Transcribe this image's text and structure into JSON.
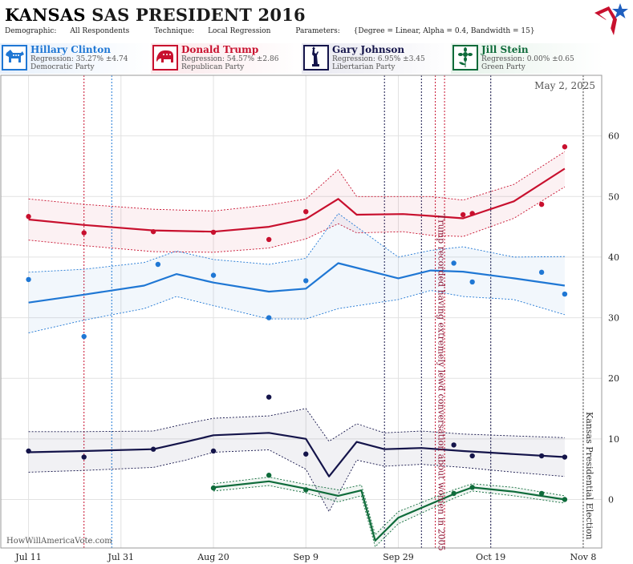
{
  "header": {
    "state": "KANSAS",
    "title_rest": "SAS PRESIDENT 2016",
    "demographic_label": "Demographic:",
    "demographic_value": "All Respondents",
    "technique_label": "Technique:",
    "technique_value": "Local Regression",
    "parameters_label": "Parameters:",
    "parameters_value": "{Degree = Linear, Alpha = 0.4, Bandwidth = 15}"
  },
  "candidates": [
    {
      "name": "Hillary Clinton",
      "regression": "Regression: 35.27% ±4.74",
      "party": "Democratic Party",
      "color": "#1f77d4",
      "icon": "donkey-icon"
    },
    {
      "name": "Donald Trump",
      "regression": "Regression: 54.57% ±2.86",
      "party": "Republican Party",
      "color": "#c8102e",
      "icon": "elephant-icon"
    },
    {
      "name": "Gary Johnson",
      "regression": "Regression: 6.95% ±3.45",
      "party": "Libertarian Party",
      "color": "#14144a",
      "icon": "liberty-icon"
    },
    {
      "name": "Jill Stein",
      "regression": "Regression: 0.00% ±0.65",
      "party": "Green Party",
      "color": "#0e6b3a",
      "icon": "sunflower-icon"
    }
  ],
  "chart_data": {
    "type": "line",
    "date_label": "May 2, 2025",
    "watermark": "HowWillAmericaVote.com",
    "x_range": [
      "2016-07-05",
      "2016-11-12"
    ],
    "ylim": [
      -8,
      70
    ],
    "y_ticks": [
      0,
      10,
      20,
      30,
      40,
      50,
      60
    ],
    "x_ticks": [
      {
        "label": "Jul 11",
        "date": "2016-07-11"
      },
      {
        "label": "Jul 31",
        "date": "2016-07-31"
      },
      {
        "label": "Aug 20",
        "date": "2016-08-20"
      },
      {
        "label": "Sep 9",
        "date": "2016-09-09"
      },
      {
        "label": "Sep 29",
        "date": "2016-09-29"
      },
      {
        "label": "Oct 19",
        "date": "2016-10-19"
      },
      {
        "label": "Nov 8",
        "date": "2016-11-08"
      }
    ],
    "annotations": [
      {
        "text": "Trump recorded having extremely lewd conversation about women in 2005",
        "date": "2016-10-07",
        "color": "#8b1030"
      },
      {
        "text": "Kansas Presidential Election",
        "date": "2016-11-08",
        "color": "#333333"
      }
    ],
    "event_lines": [
      {
        "date": "2016-07-23",
        "color": "#c8102e"
      },
      {
        "date": "2016-07-29",
        "color": "#1f77d4"
      },
      {
        "date": "2016-09-26",
        "color": "#14144a"
      },
      {
        "date": "2016-10-04",
        "color": "#14144a"
      },
      {
        "date": "2016-10-07",
        "color": "#c8102e"
      },
      {
        "date": "2016-10-09",
        "color": "#c8102e"
      },
      {
        "date": "2016-10-19",
        "color": "#14144a"
      }
    ],
    "series": [
      {
        "name": "Donald Trump",
        "color": "#c8102e",
        "x": [
          "2016-07-11",
          "2016-07-23",
          "2016-08-07",
          "2016-08-20",
          "2016-09-01",
          "2016-09-09",
          "2016-09-16",
          "2016-09-20",
          "2016-09-30",
          "2016-10-06",
          "2016-10-13",
          "2016-10-24",
          "2016-11-04"
        ],
        "y": [
          46.2,
          45.3,
          44.4,
          44.2,
          45.0,
          46.3,
          49.6,
          47.0,
          47.1,
          46.8,
          46.4,
          49.2,
          54.6
        ],
        "lower": [
          42.8,
          41.9,
          40.9,
          40.8,
          41.5,
          43.0,
          45.5,
          44.0,
          44.2,
          43.6,
          43.4,
          46.4,
          51.6
        ],
        "upper": [
          49.6,
          48.7,
          47.9,
          47.6,
          48.6,
          49.6,
          54.4,
          50.0,
          50.0,
          50.0,
          49.4,
          52.0,
          57.4
        ],
        "points": {
          "x": [
            "2016-07-11",
            "2016-07-23",
            "2016-08-07",
            "2016-08-20",
            "2016-09-01",
            "2016-09-09",
            "2016-10-13",
            "2016-10-15",
            "2016-10-30",
            "2016-11-04"
          ],
          "y": [
            46.7,
            44.0,
            44.2,
            44.1,
            42.9,
            47.5,
            47.0,
            47.2,
            48.7,
            58.2
          ]
        }
      },
      {
        "name": "Hillary Clinton",
        "color": "#1f77d4",
        "x": [
          "2016-07-11",
          "2016-07-23",
          "2016-08-05",
          "2016-08-12",
          "2016-08-20",
          "2016-09-01",
          "2016-09-09",
          "2016-09-16",
          "2016-09-29",
          "2016-10-06",
          "2016-10-13",
          "2016-10-24",
          "2016-11-04"
        ],
        "y": [
          32.5,
          33.8,
          35.3,
          37.2,
          35.8,
          34.3,
          34.8,
          39.0,
          36.5,
          37.8,
          37.6,
          36.5,
          35.3
        ],
        "lower": [
          27.5,
          29.6,
          31.5,
          33.5,
          32.0,
          29.8,
          29.8,
          31.5,
          33.0,
          34.5,
          33.5,
          33.0,
          30.5
        ],
        "upper": [
          37.5,
          38.0,
          39.1,
          41.0,
          39.6,
          38.8,
          39.8,
          47.2,
          40.0,
          41.1,
          41.7,
          40.0,
          40.1
        ],
        "points": {
          "x": [
            "2016-07-11",
            "2016-07-23",
            "2016-08-08",
            "2016-08-20",
            "2016-09-01",
            "2016-09-09",
            "2016-10-11",
            "2016-10-15",
            "2016-10-30",
            "2016-11-04"
          ],
          "y": [
            36.3,
            26.9,
            38.8,
            37.0,
            30.0,
            36.1,
            39.0,
            35.9,
            37.5,
            33.9
          ]
        }
      },
      {
        "name": "Gary Johnson",
        "color": "#14144a",
        "x": [
          "2016-07-11",
          "2016-07-23",
          "2016-08-07",
          "2016-08-14",
          "2016-08-20",
          "2016-09-01",
          "2016-09-09",
          "2016-09-14",
          "2016-09-20",
          "2016-09-26",
          "2016-10-04",
          "2016-10-13",
          "2016-10-24",
          "2016-11-04"
        ],
        "y": [
          7.8,
          8.0,
          8.3,
          9.5,
          10.6,
          11.0,
          10.0,
          3.8,
          9.5,
          8.3,
          8.5,
          8.0,
          7.5,
          7.0
        ],
        "lower": [
          4.5,
          4.8,
          5.3,
          6.5,
          7.8,
          8.2,
          5.0,
          -2.0,
          6.5,
          5.5,
          5.8,
          5.3,
          4.5,
          3.8
        ],
        "upper": [
          11.2,
          11.2,
          11.3,
          12.5,
          13.4,
          13.8,
          15.0,
          9.6,
          12.5,
          11.0,
          11.3,
          10.8,
          10.5,
          10.2
        ],
        "points": {
          "x": [
            "2016-07-11",
            "2016-07-23",
            "2016-08-07",
            "2016-08-20",
            "2016-09-01",
            "2016-09-09",
            "2016-10-11",
            "2016-10-15",
            "2016-10-30",
            "2016-11-04"
          ],
          "y": [
            8.0,
            7.0,
            8.3,
            8.0,
            16.9,
            7.5,
            9.0,
            7.2,
            7.2,
            7.0
          ]
        }
      },
      {
        "name": "Jill Stein",
        "color": "#0e6b3a",
        "x": [
          "2016-08-20",
          "2016-09-01",
          "2016-09-09",
          "2016-09-16",
          "2016-09-21",
          "2016-09-24",
          "2016-09-29",
          "2016-10-11",
          "2016-10-15",
          "2016-10-24",
          "2016-11-04"
        ],
        "y": [
          2.0,
          3.0,
          1.8,
          0.6,
          1.5,
          -6.8,
          -3.0,
          0.9,
          2.0,
          1.3,
          0.0
        ],
        "lower": [
          1.4,
          2.3,
          1.1,
          -0.4,
          0.6,
          -7.8,
          -4.0,
          0.2,
          1.4,
          0.6,
          -0.6
        ],
        "upper": [
          2.6,
          3.7,
          2.5,
          1.6,
          2.4,
          -5.8,
          -2.0,
          1.6,
          2.6,
          2.0,
          0.6
        ],
        "points": {
          "x": [
            "2016-08-20",
            "2016-09-01",
            "2016-09-09",
            "2016-10-11",
            "2016-10-15",
            "2016-10-30",
            "2016-11-04"
          ],
          "y": [
            1.9,
            4.0,
            1.6,
            1.0,
            2.0,
            1.0,
            0.0
          ]
        }
      }
    ]
  }
}
